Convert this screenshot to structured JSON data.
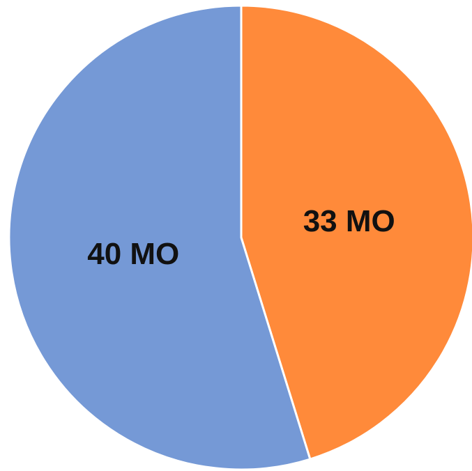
{
  "chart_data": {
    "type": "pie",
    "title": "",
    "start_angle_deg": 0,
    "direction": "clockwise",
    "slices": [
      {
        "label": "33 MO",
        "value": 33,
        "color": "#FF8A3A"
      },
      {
        "label": "40 MO",
        "value": 40,
        "color": "#7599D6"
      }
    ],
    "slice_border_color": "#ffffff",
    "legend": "none"
  }
}
